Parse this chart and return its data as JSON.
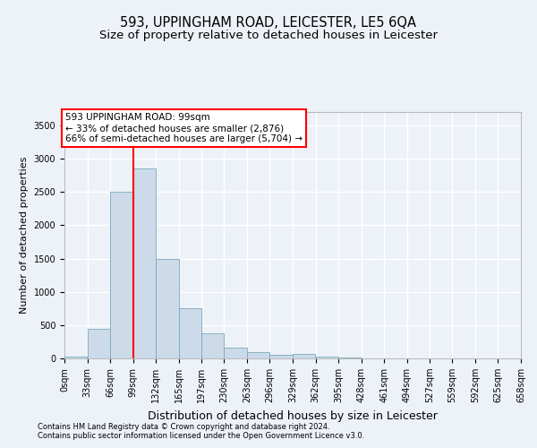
{
  "title": "593, UPPINGHAM ROAD, LEICESTER, LE5 6QA",
  "subtitle": "Size of property relative to detached houses in Leicester",
  "xlabel": "Distribution of detached houses by size in Leicester",
  "ylabel": "Number of detached properties",
  "footer_line1": "Contains HM Land Registry data © Crown copyright and database right 2024.",
  "footer_line2": "Contains public sector information licensed under the Open Government Licence v3.0.",
  "annotation_line1": "593 UPPINGHAM ROAD: 99sqm",
  "annotation_line2": "← 33% of detached houses are smaller (2,876)",
  "annotation_line3": "66% of semi-detached houses are larger (5,704) →",
  "bar_color": "#ccdaea",
  "bar_edge_color": "#7aaabb",
  "red_line_x": 99,
  "bins": [
    0,
    33,
    66,
    99,
    132,
    165,
    197,
    230,
    263,
    296,
    329,
    362,
    395,
    428,
    461,
    494,
    527,
    559,
    592,
    625,
    658
  ],
  "bar_heights": [
    30,
    450,
    2500,
    2850,
    1500,
    750,
    380,
    160,
    90,
    55,
    70,
    30,
    8,
    4,
    4,
    3,
    2,
    1,
    1,
    0
  ],
  "ylim": [
    0,
    3700
  ],
  "yticks": [
    0,
    500,
    1000,
    1500,
    2000,
    2500,
    3000,
    3500
  ],
  "background_color": "#edf2f8",
  "plot_bg_color": "#edf2f8",
  "grid_color": "#ffffff",
  "title_fontsize": 10.5,
  "subtitle_fontsize": 9.5,
  "ylabel_fontsize": 8,
  "xlabel_fontsize": 9,
  "tick_fontsize": 7,
  "annotation_fontsize": 7.5,
  "footer_fontsize": 6.0
}
